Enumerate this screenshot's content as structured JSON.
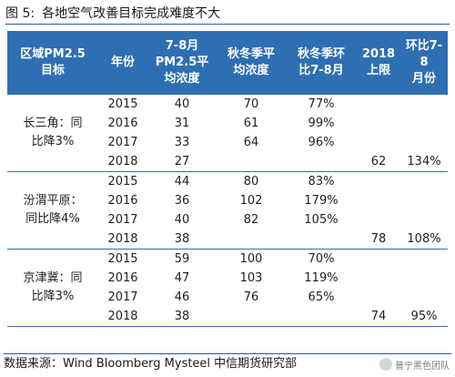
{
  "figure": {
    "label": "图 5:",
    "title": "各地空气改善目标完成难度不大"
  },
  "table": {
    "headers": [
      "区域PM2.5\n目标",
      "年份",
      "7-8月\nPM2.5平\n均浓度",
      "秋冬季平\n均浓度",
      "秋冬季环\n比7-8月",
      "2018\n上限",
      "环比7-8\n月份"
    ],
    "groups": [
      {
        "region": "长三角：同\n比降3%",
        "rows": [
          [
            "2015",
            "40",
            "70",
            "77%",
            "",
            ""
          ],
          [
            "2016",
            "31",
            "61",
            "99%",
            "",
            ""
          ],
          [
            "2017",
            "33",
            "64",
            "96%",
            "",
            ""
          ],
          [
            "2018",
            "27",
            "",
            "",
            "62",
            "134%"
          ]
        ]
      },
      {
        "region": "汾渭平原：\n同比降4%",
        "rows": [
          [
            "2015",
            "44",
            "80",
            "83%",
            "",
            ""
          ],
          [
            "2016",
            "36",
            "102",
            "179%",
            "",
            ""
          ],
          [
            "2017",
            "40",
            "82",
            "105%",
            "",
            ""
          ],
          [
            "2018",
            "38",
            "",
            "",
            "78",
            "108%"
          ]
        ]
      },
      {
        "region": "京津冀：同\n比降3%",
        "rows": [
          [
            "2015",
            "59",
            "100",
            "70%",
            "",
            ""
          ],
          [
            "2016",
            "47",
            "103",
            "119%",
            "",
            ""
          ],
          [
            "2017",
            "46",
            "76",
            "65%",
            "",
            ""
          ],
          [
            "2018",
            "38",
            "",
            "",
            "74",
            "95%"
          ]
        ]
      }
    ]
  },
  "source": "数据来源：Wind Bloomberg Mysteel 中信期货研究部",
  "watermark": "普宁黑色团队",
  "colors": {
    "header_bg": "#2e6fb3",
    "header_text": "#ffffff",
    "rule": "#2f5597"
  }
}
